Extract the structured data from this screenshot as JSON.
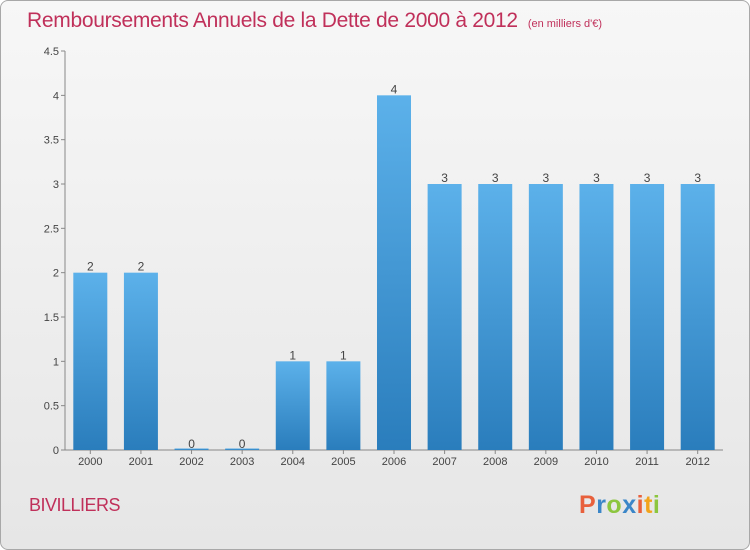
{
  "title": "Remboursements Annuels de la Dette de 2000 à 2012",
  "unit_note": "(en milliers d'€)",
  "commune": "BIVILLIERS",
  "logo": {
    "letters": [
      "P",
      "r",
      "o",
      "x",
      "i",
      "t",
      "i"
    ],
    "colors": [
      "#e8603c",
      "#3b86c8",
      "#8cc63f",
      "#3b86c8",
      "#e8603c",
      "#f2a31b",
      "#8cc63f"
    ]
  },
  "chart_data": {
    "type": "bar",
    "title": "Remboursements Annuels de la Dette de 2000 à 2012",
    "subtitle": "(en milliers d'€)",
    "categories": [
      "2000",
      "2001",
      "2002",
      "2003",
      "2004",
      "2005",
      "2006",
      "2007",
      "2008",
      "2009",
      "2010",
      "2011",
      "2012"
    ],
    "values": [
      2,
      2,
      0,
      0,
      1,
      1,
      4,
      3,
      3,
      3,
      3,
      3,
      3
    ],
    "value_labels": [
      "2",
      "2",
      "0",
      "0",
      "1",
      "1",
      "4",
      "3",
      "3",
      "3",
      "3",
      "3",
      "3"
    ],
    "ylim": [
      0,
      4.5
    ],
    "yticks": [
      0,
      0.5,
      1,
      1.5,
      2,
      2.5,
      3,
      3.5,
      4,
      4.5
    ],
    "ytick_labels": [
      "0",
      "0.5",
      "1",
      "1.5",
      "2",
      "2.5",
      "3",
      "3.5",
      "4",
      "4.5"
    ],
    "grid": false,
    "bar_color": "#3d97d8",
    "xlabel": "",
    "ylabel": ""
  }
}
